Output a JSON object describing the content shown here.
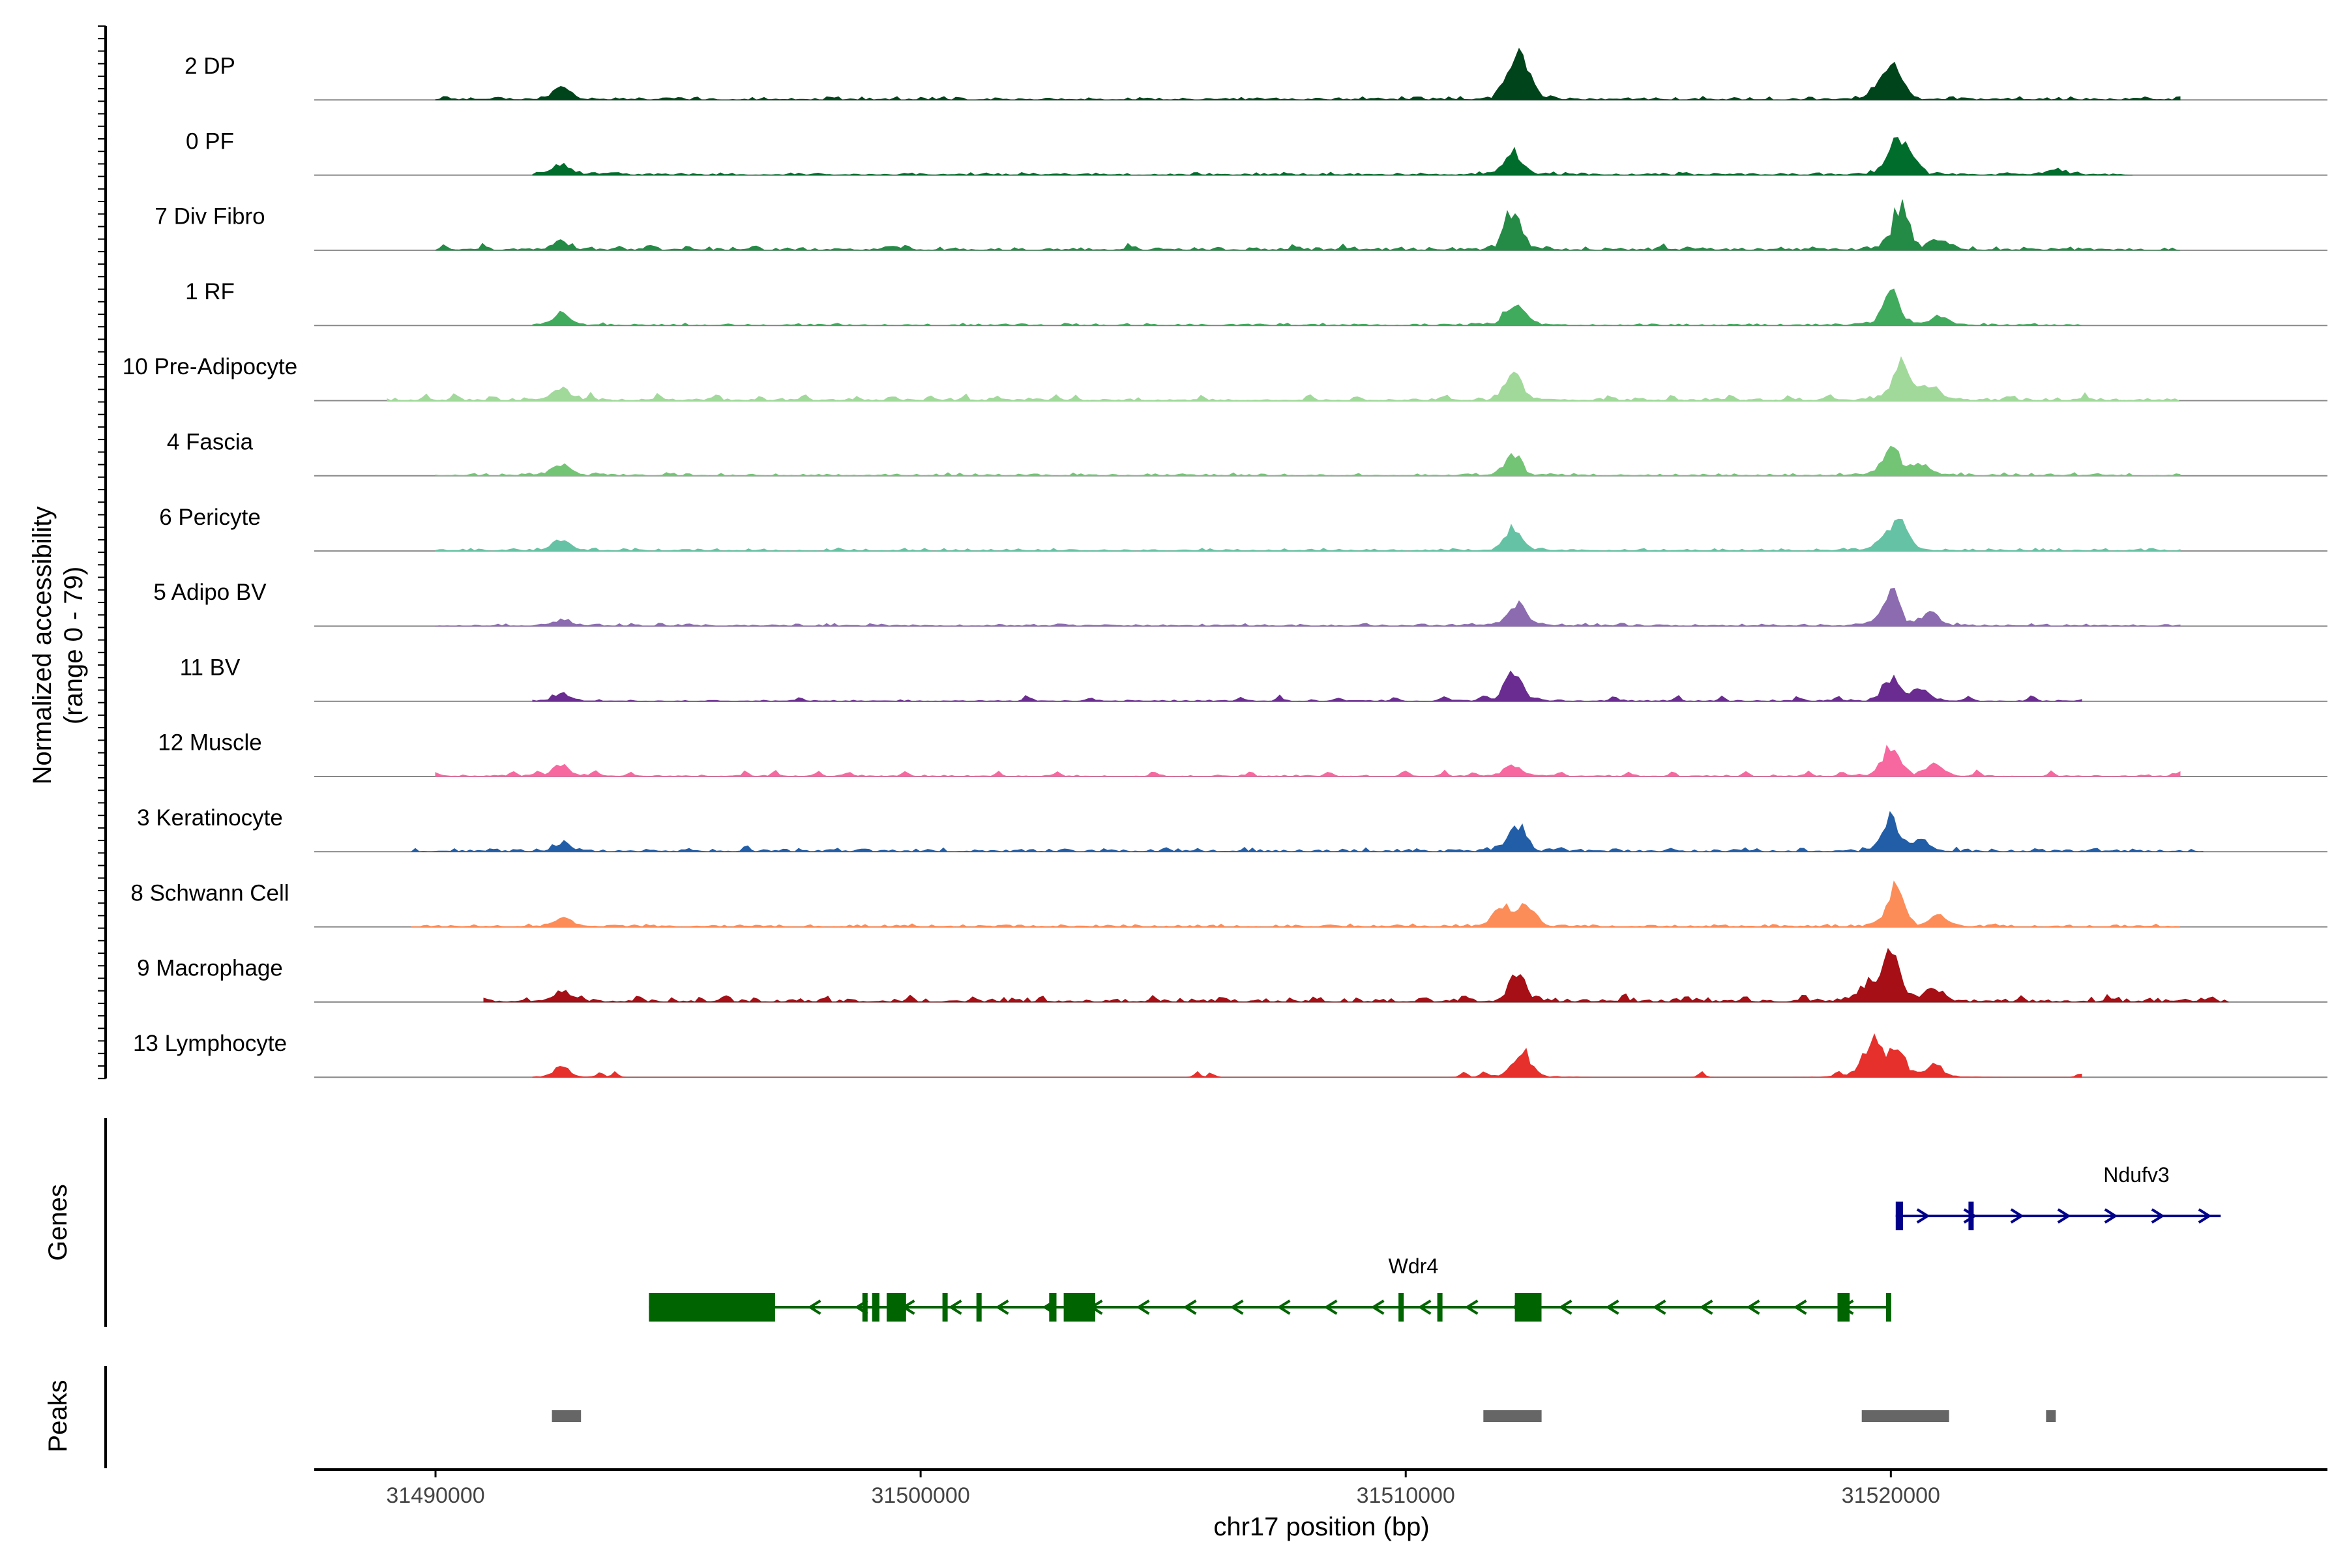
{
  "chart_data": {
    "type": "coverage-track",
    "ylabel_line1": "Normalized accessibility",
    "ylabel_line2": "(range 0 - 79)",
    "y_range": [
      0,
      79
    ],
    "xlabel": "chr17 position (bp)",
    "x_range": [
      31487500,
      31529000
    ],
    "x_ticks": [
      31490000,
      31500000,
      31510000,
      31520000
    ],
    "x_tick_labels": [
      "31490000",
      "31500000",
      "31510000",
      "31520000"
    ],
    "track_labels": {
      "genes": "Genes",
      "peaks": "Peaks"
    },
    "tracks": [
      {
        "name": "2 DP",
        "color": "#00441b",
        "bg": 0.06,
        "noise": [
          31490000,
          31526000
        ],
        "peaks": [
          [
            31492600,
            20
          ],
          [
            31512200,
            40
          ],
          [
            31512450,
            38
          ],
          [
            31520100,
            40
          ],
          [
            31519800,
            22
          ]
        ],
        "small": []
      },
      {
        "name": "0 PF",
        "color": "#006d2c",
        "bg": 0.05,
        "noise": [
          31492000,
          31525000
        ],
        "peaks": [
          [
            31492600,
            14
          ],
          [
            31512200,
            33
          ],
          [
            31520100,
            44
          ],
          [
            31520400,
            20
          ],
          [
            31523400,
            8
          ]
        ],
        "small": []
      },
      {
        "name": "7 Div Fibro",
        "color": "#238b45",
        "bg": 0.06,
        "noise": [
          31490000,
          31526000
        ],
        "peaks": [
          [
            31492600,
            12
          ],
          [
            31512200,
            50
          ],
          [
            31520200,
            60
          ],
          [
            31521000,
            14
          ]
        ],
        "small": [
          31490200,
          31491000,
          31493800,
          31494400,
          31495200,
          31496600,
          31499400,
          31499700,
          31504300,
          31507700,
          31508700,
          31515300
        ]
      },
      {
        "name": "1 RF",
        "color": "#41ab5d",
        "bg": 0.04,
        "noise": [
          31492000,
          31524000
        ],
        "peaks": [
          [
            31492600,
            14
          ],
          [
            31512300,
            30
          ],
          [
            31520000,
            42
          ],
          [
            31521000,
            12
          ]
        ],
        "small": [
          31512000
        ]
      },
      {
        "name": "10 Pre-Adipocyte",
        "color": "#a1d99b",
        "bg": 0.05,
        "noise": [
          31489000,
          31526000
        ],
        "peaks": [
          [
            31492600,
            18
          ],
          [
            31512200,
            38
          ],
          [
            31520200,
            56
          ],
          [
            31520800,
            20
          ]
        ],
        "small": [
          31489800,
          31490400,
          31491200,
          31493200,
          31494600,
          31495800,
          31496700,
          31497600,
          31498700,
          31499400,
          31500200,
          31500900,
          31501600,
          31502800,
          31503200,
          31505800,
          31508000,
          31509000,
          31510800,
          31514200,
          31515500,
          31516700,
          31517900,
          31518700,
          31522500,
          31524000
        ]
      },
      {
        "name": "4 Fascia",
        "color": "#74c476",
        "bg": 0.05,
        "noise": [
          31490000,
          31526000
        ],
        "peaks": [
          [
            31492600,
            15
          ],
          [
            31512200,
            30
          ],
          [
            31520000,
            40
          ],
          [
            31520600,
            16
          ]
        ],
        "small": []
      },
      {
        "name": "6 Pericyte",
        "color": "#66c2a4",
        "bg": 0.05,
        "noise": [
          31490000,
          31526000
        ],
        "peaks": [
          [
            31492600,
            14
          ],
          [
            31512200,
            30
          ],
          [
            31520200,
            36
          ],
          [
            31519900,
            16
          ]
        ],
        "small": []
      },
      {
        "name": "5 Adipo BV",
        "color": "#8c6bb1",
        "bg": 0.05,
        "noise": [
          31490000,
          31526000
        ],
        "peaks": [
          [
            31492600,
            8
          ],
          [
            31512300,
            32
          ],
          [
            31520000,
            44
          ],
          [
            31520800,
            18
          ]
        ],
        "small": []
      },
      {
        "name": "11 BV",
        "color": "#6a2c91",
        "bg": 0.03,
        "noise": [
          31492000,
          31524000
        ],
        "peaks": [
          [
            31492600,
            10
          ],
          [
            31512200,
            38
          ],
          [
            31520000,
            30
          ],
          [
            31520600,
            16
          ]
        ],
        "small": [
          31490200,
          31497500,
          31502200,
          31503500,
          31506600,
          31507400,
          31508600,
          31509800,
          31510800,
          31511600,
          31514300,
          31515600,
          31516500,
          31518100,
          31518900,
          31521600,
          31522900
        ]
      },
      {
        "name": "12 Muscle",
        "color": "#f768a1",
        "bg": 0.03,
        "noise": [
          31490000,
          31526000
        ],
        "peaks": [
          [
            31492600,
            16
          ],
          [
            31512200,
            16
          ],
          [
            31520000,
            42
          ],
          [
            31520900,
            18
          ]
        ],
        "small": [
          31490000,
          31491600,
          31492100,
          31493300,
          31494000,
          31496400,
          31497000,
          31497900,
          31498500,
          31499700,
          31501600,
          31502800,
          31504800,
          31506800,
          31508400,
          31510000,
          31510800,
          31511400,
          31513200,
          31514600,
          31515500,
          31517000,
          31518300,
          31519000,
          31521800,
          31523300,
          31525900
        ]
      },
      {
        "name": "3 Keratinocyte",
        "color": "#225ea8",
        "bg": 0.07,
        "noise": [
          31489500,
          31526500
        ],
        "peaks": [
          [
            31492600,
            10
          ],
          [
            31512300,
            36
          ],
          [
            31520000,
            42
          ],
          [
            31520600,
            14
          ]
        ],
        "small": [
          31496400
        ]
      },
      {
        "name": "8 Schwann Cell",
        "color": "#fc8d59",
        "bg": 0.05,
        "noise": [
          31489500,
          31526000
        ],
        "peaks": [
          [
            31492600,
            12
          ],
          [
            31512000,
            26
          ],
          [
            31512500,
            30
          ],
          [
            31520100,
            52
          ],
          [
            31521000,
            14
          ]
        ],
        "small": []
      },
      {
        "name": "9 Macrophage",
        "color": "#a50f15",
        "bg": 0.08,
        "noise": [
          31491000,
          31527000
        ],
        "peaks": [
          [
            31492600,
            14
          ],
          [
            31512300,
            36
          ],
          [
            31520000,
            70
          ],
          [
            31519500,
            24
          ],
          [
            31520900,
            18
          ]
        ],
        "small": [
          31490700,
          31493000,
          31494200,
          31496000,
          31498000,
          31499800,
          31501100,
          31502500,
          31504800,
          31506200,
          31508200,
          31510400,
          31511200,
          31514500,
          31515800,
          31517000,
          31518200,
          31522700,
          31524500,
          31526600
        ]
      },
      {
        "name": "13 Lymphocyte",
        "color": "#e6302c",
        "bg": 0.0,
        "noise": [
          31492000,
          31524000
        ],
        "peaks": [
          [
            31492600,
            14
          ],
          [
            31512400,
            40
          ],
          [
            31519600,
            52
          ],
          [
            31520100,
            44
          ],
          [
            31520900,
            16
          ]
        ],
        "small": [
          31493400,
          31493700,
          31505700,
          31506000,
          31511200,
          31511600,
          31516100,
          31518900,
          31523900,
          31524200
        ]
      }
    ],
    "genes": [
      {
        "name": "Ndufv3",
        "strand": "+",
        "color": "#00008b",
        "start": 31520100,
        "end": 31526800,
        "exons": [
          [
            31520100,
            31520250
          ],
          [
            31521600,
            31521700
          ]
        ]
      },
      {
        "name": "Wdr4",
        "strand": "-",
        "color": "#006400",
        "start": 31494400,
        "end": 31520000,
        "exons": [
          [
            31494400,
            31497000
          ],
          [
            31498800,
            31498850
          ],
          [
            31499000,
            31499150
          ],
          [
            31499300,
            31499700
          ],
          [
            31500450,
            31500550
          ],
          [
            31501150,
            31501250
          ],
          [
            31502650,
            31502800
          ],
          [
            31502950,
            31503600
          ],
          [
            31509850,
            31509950
          ],
          [
            31510650,
            31510700
          ],
          [
            31512250,
            31512800
          ],
          [
            31518900,
            31519150
          ],
          [
            31519900,
            31519980
          ]
        ]
      }
    ],
    "peaks": [
      [
        31492400,
        31493000
      ],
      [
        31511600,
        31512800
      ],
      [
        31519400,
        31521200
      ],
      [
        31523200,
        31523400
      ]
    ]
  }
}
